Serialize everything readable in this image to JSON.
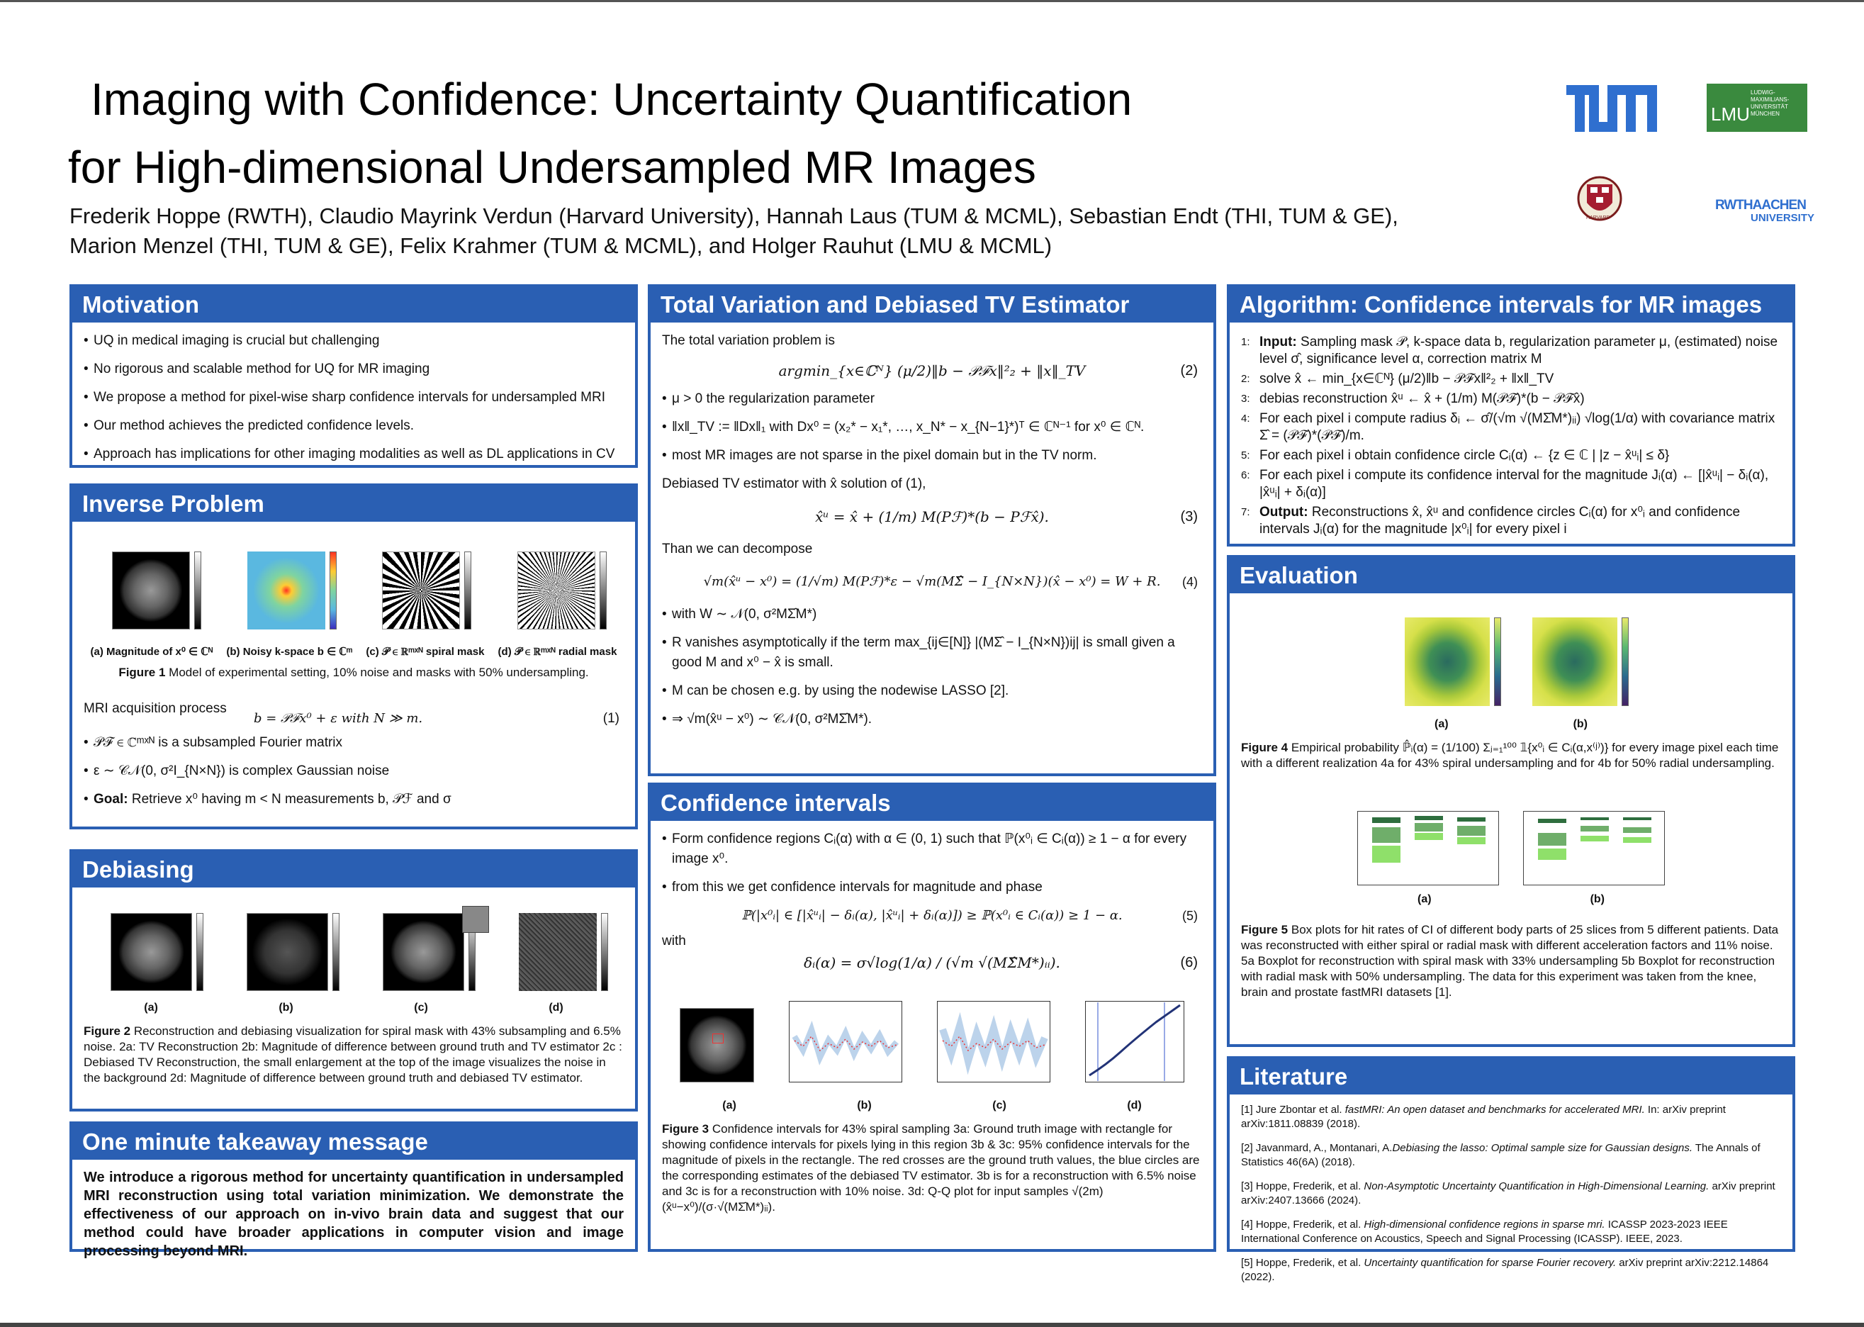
{
  "title": {
    "line1": "Imaging with Confidence: Uncertainty Quantification",
    "line2": "for High-dimensional Undersampled MR Images"
  },
  "authors": {
    "line1": "Frederik Hoppe (RWTH), Claudio Mayrink Verdun (Harvard University), Hannah Laus (TUM & MCML), Sebastian Endt (THI, TUM & GE),",
    "line2": "Marion Menzel (THI, TUM & GE), Felix Krahmer (TUM & MCML), and Holger Rauhut (LMU & MCML)"
  },
  "logos": {
    "tum": "TUM",
    "lmu": "LMU",
    "lmu_small": "LUDWIG-MAXIMILIANS-UNIVERSITÄT MÜNCHEN",
    "harvard": "HARVARD",
    "rwth": "RWTHAACHEN",
    "rwth2": "UNIVERSITY"
  },
  "motivation": {
    "title": "Motivation",
    "items": [
      "UQ in medical imaging is crucial but challenging",
      "No rigorous and scalable method for UQ for MR imaging",
      "We propose a method for pixel-wise sharp confidence intervals for undersampled MRI",
      "Our method achieves the predicted confidence levels.",
      "Approach has implications for other imaging modalities as well as DL applications in CV"
    ]
  },
  "inverse": {
    "title": "Inverse Problem",
    "sub_a": "(a) Magnitude of x⁰ ∈ ℂᴺ",
    "sub_b": "(b) Noisy k-space b ∈ ℂᵐ",
    "sub_c": "(c) 𝒫 ∈ ℝᵐˣᴺ spiral mask",
    "sub_d": "(d) 𝒫 ∈ ℝᵐˣᴺ radial mask",
    "caption_bold": "Figure 1",
    "caption": "Model of experimental setting, 10% noise and masks with 50% undersampling.",
    "acq_label": "MRI acquisition process",
    "acq_eq": "b = 𝒫ℱx⁰ + ε        with N ≫ m.",
    "acq_num": "(1)",
    "items": [
      "𝒫ℱ ∈ ℂᵐˣᴺ is a subsampled Fourier matrix",
      "ε ∼ 𝒞𝒩(0, σ²I_{N×N}) is complex Gaussian noise"
    ],
    "goal_bold": "Goal:",
    "goal": "Retrieve x⁰ having m < N measurements b, 𝒫ℱ and σ"
  },
  "debiasing": {
    "title": "Debiasing",
    "labels": [
      "(a)",
      "(b)",
      "(c)",
      "(d)"
    ],
    "caption_bold": "Figure 2",
    "caption": "Reconstruction and debiasing visualization for spiral mask with 43% subsampling and 6.5% noise. 2a: TV Reconstruction 2b: Magnitude of difference between ground truth and TV estimator 2c : Debiased TV Reconstruction, the small enlargement at the top of the image visualizes the noise in the background 2d: Magnitude of difference between ground truth and debiased TV estimator."
  },
  "takeaway": {
    "title": "One minute takeaway message",
    "text": "We introduce a rigorous method for uncertainty quantification in undersampled MRI reconstruction using total variation minimization. We demonstrate the effectiveness of our approach on in-vivo brain data and suggest that our method could have broader applications in computer vision and image processing beyond MRI."
  },
  "tv": {
    "title": "Total Variation and Debiased TV Estimator",
    "intro": "The total variation problem is",
    "eq2": "argmin_{x∈ℂᴺ} (μ/2)‖b − 𝒫ℱx‖²₂ + ‖x‖_TV",
    "eq2_num": "(2)",
    "items1": [
      "μ > 0 the regularization parameter",
      "‖x‖_TV := ‖Dx‖₁ with Dx⁰ = (x₂* − x₁*, …, x_N* − x_{N−1}*)ᵀ ∈ ℂᴺ⁻¹ for x⁰ ∈ ℂᴺ.",
      "most MR images are not sparse in the pixel domain but in the TV norm."
    ],
    "debias_intro": "Debiased TV estimator with x̂ solution of (1),",
    "eq3": "x̂ᵘ = x̂ + (1/m) M(Pℱ)*(b − Pℱx̂).",
    "eq3_num": "(3)",
    "decomp": "Than we can decompose",
    "eq4": "√m(x̂ᵘ − x⁰) = (1/√m) M(Pℱ)*ε − √m(MΣ̂ − I_{N×N})(x̂ − x⁰) = W + R.",
    "eq4_num": "(4)",
    "items2": [
      "with W ∼ 𝒩(0, σ²MΣ̂M*)",
      "R vanishes asymptotically if the term max_{ij∈[N]} |(MΣ̂ − I_{N×N})ij| is small given a good M and x⁰ − x̂ is small.",
      "M can be chosen e.g. by using the nodewise LASSO [2].",
      "⇒ √m(x̂ᵘ − x⁰) ∼ 𝒞𝒩(0, σ²MΣ̂M*)."
    ]
  },
  "ci": {
    "title": "Confidence intervals",
    "item1": "Form confidence regions Cᵢ(α) with α ∈ (0, 1) such that ℙ(x⁰ᵢ ∈ Cᵢ(α)) ≥ 1 − α for every image x⁰.",
    "item2": "from this we get confidence intervals for magnitude and phase",
    "eq5": "ℙ(|x⁰ᵢ| ∈ [|x̂ᵘᵢ| − δᵢ(α), |x̂ᵘᵢ| + δᵢ(α)]) ≥ ℙ(x⁰ᵢ ∈ Cᵢ(α)) ≥ 1 − α.",
    "eq5_num": "(5)",
    "with": "with",
    "eq6": "δᵢ(α) = σ√log(1/α) / (√m √(MΣ̂M*)ᵢᵢ).",
    "eq6_num": "(6)",
    "labels": [
      "(a)",
      "(b)",
      "(c)",
      "(d)"
    ],
    "caption_bold": "Figure 3",
    "caption": "Confidence intervals for 43% spiral sampling 3a: Ground truth image with rectangle for showing confidence intervals for pixels lying in this region 3b & 3c: 95% confidence intervals for the magnitude of pixels in the rectangle. The red crosses are the ground truth values, the blue circles are the corresponding estimates of the debiased TV estimator. 3b is for a reconstruction with 6.5% noise and 3c is for a reconstruction with 10% noise. 3d: Q-Q plot for input samples √(2m)(x̂ᵘ−x⁰)/(σ·√(MΣ̂M*)ᵢᵢ)."
  },
  "algorithm": {
    "title": "Algorithm: Confidence intervals for MR images",
    "steps": [
      {
        "n": "1:",
        "bold": "Input:",
        "text": "Sampling mask 𝒫, k-space data b, regularization parameter μ, (estimated) noise level σ̂, significance level α, correction matrix M"
      },
      {
        "n": "2:",
        "bold": "",
        "text": "solve x̂ ← min_{x∈ℂᴺ} (μ/2)‖b − 𝒫ℱx‖²₂ + ‖x‖_TV"
      },
      {
        "n": "3:",
        "bold": "",
        "text": "debias reconstruction x̂ᵘ ← x̂ + (1/m) M(𝒫ℱ)*(b − 𝒫ℱx̂)"
      },
      {
        "n": "4:",
        "bold": "",
        "text": "For each pixel i compute radius δᵢ ← σ̂/(√m √(MΣ̂M*)ᵢᵢ) √log(1/α) with covariance matrix Σ̂ = (𝒫ℱ)*(𝒫ℱ)/m."
      },
      {
        "n": "5:",
        "bold": "",
        "text": "For each pixel i obtain confidence circle Cᵢ(α) ← {z ∈ ℂ | |z − x̂ᵘᵢ| ≤ δ}"
      },
      {
        "n": "6:",
        "bold": "",
        "text": "For each pixel i compute its confidence interval for the magnitude Jᵢ(α) ← [|x̂ᵘᵢ| − δᵢ(α), |x̂ᵘᵢ| + δᵢ(α)]"
      },
      {
        "n": "7:",
        "bold": "Output:",
        "text": "Reconstructions x̂, x̂ᵘ and confidence circles Cᵢ(α) for x⁰ᵢ and confidence intervals Jᵢ(α) for the magnitude |x⁰ᵢ| for every pixel i"
      }
    ]
  },
  "evaluation": {
    "title": "Evaluation",
    "labels4": [
      "(a)",
      "(b)"
    ],
    "caption4_bold": "Figure 4",
    "caption4": "Empirical probability ℙ̂ᵢ(α) = (1/100) Σⱼ₌₁¹⁰⁰ 𝟙{x⁰ᵢ ∈ Cᵢ(α,x⁽ʲ⁾)} for every image pixel each time with a different realization 4a for 43% spiral undersampling and for 4b for 50% radial undersampling.",
    "labels5": [
      "(a)",
      "(b)"
    ],
    "caption5_bold": "Figure 5",
    "caption5": "Box plots for hit rates of CI of different body parts of 25 slices from 5 different patients. Data was reconstructed with either spiral or radial mask with different acceleration factors and 11% noise. 5a Boxplot for reconstruction with spiral mask with 33% undersampling 5b Boxplot for reconstruction with radial mask with 50% undersampling. The data for this experiment was taken from the knee, brain and prostate fastMRI datasets [1]."
  },
  "literature": {
    "title": "Literature",
    "refs": [
      {
        "pre": "[1] Jure Zbontar et al. ",
        "it": "fastMRI: An open dataset and benchmarks for accelerated MRI.",
        "post": " In: arXiv preprint arXiv:1811.08839 (2018)."
      },
      {
        "pre": "[2] Javanmard, A., Montanari, A.",
        "it": "Debiasing the lasso: Optimal sample size for Gaussian designs.",
        "post": " The Annals of Statistics 46(6A) (2018)."
      },
      {
        "pre": "[3] Hoppe, Frederik, et al. ",
        "it": "Non-Asymptotic Uncertainty Quantification in High-Dimensional Learning.",
        "post": " arXiv preprint arXiv:2407.13666 (2024)."
      },
      {
        "pre": "[4] Hoppe, Frederik, et al. ",
        "it": "High-dimensional confidence regions in sparse mri.",
        "post": " ICASSP 2023-2023 IEEE International Conference on Acoustics, Speech and Signal Processing (ICASSP). IEEE, 2023."
      },
      {
        "pre": "[5] Hoppe, Frederik, et al. ",
        "it": "Uncertainty quantification for sparse Fourier recovery.",
        "post": " arXiv preprint arXiv:2212.14864 (2022)."
      }
    ]
  }
}
